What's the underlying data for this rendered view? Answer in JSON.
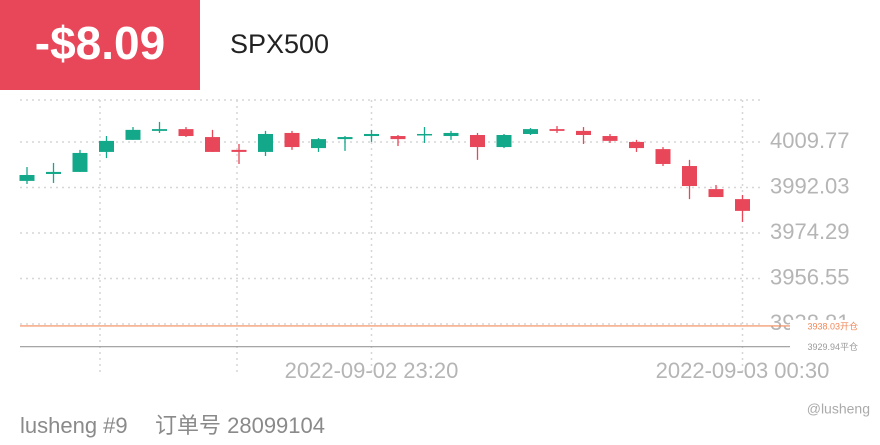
{
  "header": {
    "pnl": "-$8.09",
    "symbol": "SPX500"
  },
  "chart_data": {
    "type": "candlestick",
    "categories": [
      null,
      null,
      null,
      null,
      null,
      null,
      null,
      null,
      null,
      null,
      null,
      null,
      null,
      "2022-09-02 23:20",
      null,
      null,
      null,
      null,
      null,
      null,
      null,
      null,
      null,
      null,
      null,
      null,
      null,
      "2022-09-03 00:30"
    ],
    "open": [
      3994.6,
      3997.3,
      3998.1,
      4005.9,
      4010.6,
      4014.1,
      4014.8,
      4011.7,
      4006.7,
      4005.9,
      4013.3,
      4007.4,
      4010.9,
      4012.1,
      4012.1,
      4012.5,
      4012.1,
      4012.5,
      4007.8,
      4012.9,
      4014.8,
      4014.1,
      4012.1,
      4009.8,
      4007.0,
      4000.4,
      3991.4,
      3987.5
    ],
    "high": [
      4000.0,
      4001.6,
      4006.7,
      4012.1,
      4015.6,
      4017.6,
      4015.6,
      4014.5,
      4009.0,
      4014.1,
      4014.1,
      4011.3,
      4012.1,
      4014.5,
      4012.5,
      4015.6,
      4014.1,
      4013.3,
      4012.9,
      4015.2,
      4016.0,
      4015.6,
      4012.9,
      4010.6,
      4007.8,
      4002.8,
      3993.0,
      3989.1
    ],
    "low": [
      3993.4,
      3993.8,
      3998.1,
      4003.5,
      4010.6,
      4013.3,
      4011.7,
      4005.9,
      4001.2,
      4004.3,
      4006.7,
      4005.9,
      4006.3,
      4009.8,
      4008.2,
      4009.4,
      4010.6,
      4002.8,
      4007.4,
      4012.5,
      4013.3,
      4009.0,
      4009.4,
      4005.9,
      4000.4,
      3987.5,
      3988.3,
      3978.6
    ],
    "close": [
      3996.9,
      3998.1,
      4005.5,
      4010.2,
      4014.5,
      4014.8,
      4012.1,
      4005.9,
      4005.9,
      4012.9,
      4007.8,
      4010.9,
      4011.7,
      4012.9,
      4010.9,
      4012.9,
      4013.3,
      4007.8,
      4012.5,
      4014.8,
      4014.1,
      4012.5,
      4010.2,
      4007.4,
      4001.2,
      3992.6,
      3988.3,
      3982.9
    ],
    "up_color": "#13a88a",
    "down_color": "#e8475a",
    "ylim": [
      3924.75,
      4026.15
    ],
    "yticks": [
      4009.77,
      3992.03,
      3974.29,
      3956.55,
      3938.81
    ],
    "grid": true,
    "price_lines": [
      {
        "value": 3938.03,
        "label": "3938.03开仓",
        "color": "#f0885a"
      },
      {
        "value": 3929.94,
        "label": "3929.94平仓",
        "color": "#9a9a9a"
      }
    ]
  },
  "footer": {
    "account": "lusheng #9",
    "order": "订单号 28099104",
    "watermark": "@lusheng"
  }
}
